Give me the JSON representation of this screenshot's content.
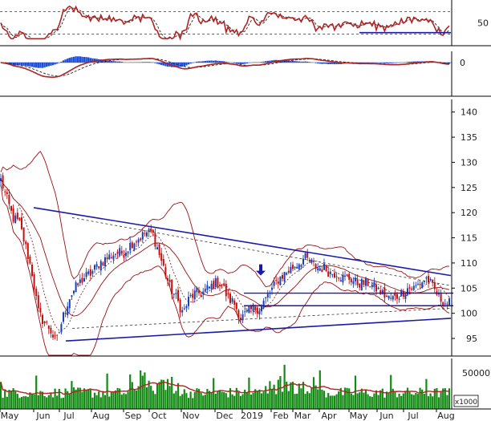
{
  "chart_data": {
    "type": "candlestick",
    "title": "",
    "x_axis": {
      "labels": [
        "May",
        "Jun",
        "Jul",
        "Aug",
        "Sep",
        "Oct",
        "Nov",
        "Dec",
        "2019",
        "Feb",
        "Mar",
        "Apr",
        "May",
        "Jun",
        "Jul",
        "Aug"
      ]
    },
    "price_axis": {
      "ticks": [
        95,
        100,
        105,
        110,
        115,
        120,
        125,
        130,
        135,
        140
      ],
      "range": [
        91.5,
        142.5
      ]
    },
    "rsi_panel": {
      "ticks": [
        50
      ],
      "range": [
        0,
        100
      ],
      "upper_level": 80,
      "lower_level": 20
    },
    "macd_panel": {
      "ticks": [
        0
      ]
    },
    "volume_panel": {
      "ticks": [
        50000
      ],
      "unit_label": "x1000"
    },
    "anchor_prices": [
      [
        0,
        127
      ],
      [
        8,
        123
      ],
      [
        16,
        119
      ],
      [
        24,
        118
      ],
      [
        34,
        112
      ],
      [
        40,
        108
      ],
      [
        48,
        100
      ],
      [
        56,
        98
      ],
      [
        62,
        97
      ],
      [
        70,
        94
      ],
      [
        78,
        99
      ],
      [
        86,
        103
      ],
      [
        94,
        105
      ],
      [
        104,
        107
      ],
      [
        114,
        108
      ],
      [
        124,
        110
      ],
      [
        134,
        111
      ],
      [
        144,
        112
      ],
      [
        154,
        112
      ],
      [
        164,
        114
      ],
      [
        174,
        115
      ],
      [
        182,
        116
      ],
      [
        190,
        116
      ],
      [
        196,
        113
      ],
      [
        204,
        109
      ],
      [
        212,
        105
      ],
      [
        220,
        103
      ],
      [
        228,
        100
      ],
      [
        236,
        103
      ],
      [
        244,
        104
      ],
      [
        252,
        104
      ],
      [
        260,
        105
      ],
      [
        268,
        106
      ],
      [
        276,
        106
      ],
      [
        284,
        103
      ],
      [
        292,
        102
      ],
      [
        300,
        99
      ],
      [
        308,
        100
      ],
      [
        316,
        101
      ],
      [
        324,
        101
      ],
      [
        332,
        103
      ],
      [
        340,
        105
      ],
      [
        348,
        107
      ],
      [
        356,
        108
      ],
      [
        364,
        109
      ],
      [
        372,
        110
      ],
      [
        380,
        111
      ],
      [
        388,
        110
      ],
      [
        396,
        109
      ],
      [
        404,
        109
      ],
      [
        412,
        108
      ],
      [
        420,
        108
      ],
      [
        428,
        107
      ],
      [
        436,
        107
      ],
      [
        444,
        106
      ],
      [
        452,
        106
      ],
      [
        460,
        106
      ],
      [
        468,
        105
      ],
      [
        476,
        104
      ],
      [
        484,
        103
      ],
      [
        492,
        103
      ],
      [
        500,
        104
      ],
      [
        508,
        105
      ],
      [
        516,
        105
      ],
      [
        524,
        106
      ],
      [
        532,
        107
      ],
      [
        540,
        105
      ],
      [
        548,
        103
      ],
      [
        556,
        102
      ],
      [
        562,
        102
      ]
    ],
    "down_arrow_price": 107.5,
    "trendlines": [
      {
        "style": "upper-resistance",
        "points": [
          [
            42,
            121
          ],
          [
            562,
            107.5
          ]
        ]
      },
      {
        "style": "lower-support",
        "points": [
          [
            82,
            94.5
          ],
          [
            562,
            99
          ]
        ]
      },
      {
        "style": "dashed-resistance",
        "points": [
          [
            90,
            119
          ],
          [
            562,
            105.5
          ]
        ]
      },
      {
        "style": "dashed-support",
        "points": [
          [
            90,
            97
          ],
          [
            562,
            101
          ]
        ]
      },
      {
        "style": "horizontal",
        "points": [
          [
            304,
            104
          ],
          [
            565,
            104
          ]
        ]
      },
      {
        "style": "horizontal",
        "points": [
          [
            304,
            101.5
          ],
          [
            565,
            101.5
          ]
        ]
      },
      {
        "style": "rsi-support",
        "points": [
          [
            448,
            24
          ],
          [
            562,
            24
          ]
        ]
      }
    ],
    "colors": {
      "candle_up": "#1a3fb5",
      "candle_down": "#c41010",
      "trend": "#1a1aa8",
      "band": "#9a1010",
      "moving_average": "#b22222",
      "volume_bar": "#138a13",
      "histogram": "#1f4fd8",
      "panel_border": "#000000",
      "grid": "#d8d8d8"
    }
  }
}
